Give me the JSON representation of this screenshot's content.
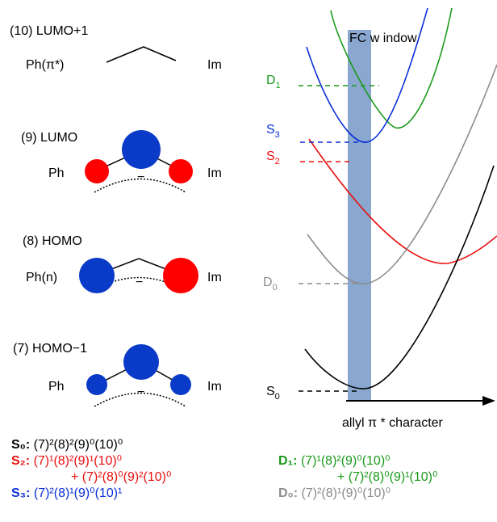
{
  "orbitals": [
    {
      "name": "(10) LUMO+1",
      "left": "Ph(π*)",
      "right": "Im"
    },
    {
      "name": "(9) LUMO",
      "left": "Ph",
      "right": "Im",
      "minus": "−"
    },
    {
      "name": "(8) HOMO",
      "left": "Ph(n)",
      "right": "Im",
      "minus": "−"
    },
    {
      "name": "(7) HOMO−1",
      "left": "Ph",
      "right": "Im",
      "minus": "−"
    }
  ],
  "states": {
    "D1": {
      "main": "D",
      "sub": "1"
    },
    "S3": {
      "main": "S",
      "sub": "3"
    },
    "S2": {
      "main": "S",
      "sub": "2"
    },
    "D0": {
      "main": "D",
      "sub": "0"
    },
    "S0": {
      "main": "S",
      "sub": "0"
    }
  },
  "fc_window": "FC w indow",
  "x_axis_label": "allyl π * character",
  "colors": {
    "black": "#000000",
    "green": "#1a9a1a",
    "blue": "#0a2fd6",
    "red": "#e8100f",
    "gray": "#8c8c8c",
    "orbital_blue": "#0a3ac8",
    "orbital_red": "#ff0000",
    "window": "#8aa7d0"
  },
  "configs": {
    "S0": {
      "label": "S₀:",
      "text": "(7)²(8)²(9)⁰(10)⁰"
    },
    "S2": {
      "label": "S₂:",
      "line1": "(7)¹(8)²(9)¹(10)⁰",
      "line2": "+ (7)²(8)⁰(9)²(10)⁰"
    },
    "S3": {
      "label": "S₃:",
      "text": "(7)²(8)¹(9)⁰(10)¹"
    },
    "D1": {
      "label": "D₁:",
      "line1": "(7)¹(8)²(9)⁰(10)⁰",
      "line2": "+ (7)²(8)⁰(9)¹(10)⁰"
    },
    "D0": {
      "label": "D₀:",
      "text": "(7)²(8)¹(9)⁰(10)⁰"
    }
  }
}
